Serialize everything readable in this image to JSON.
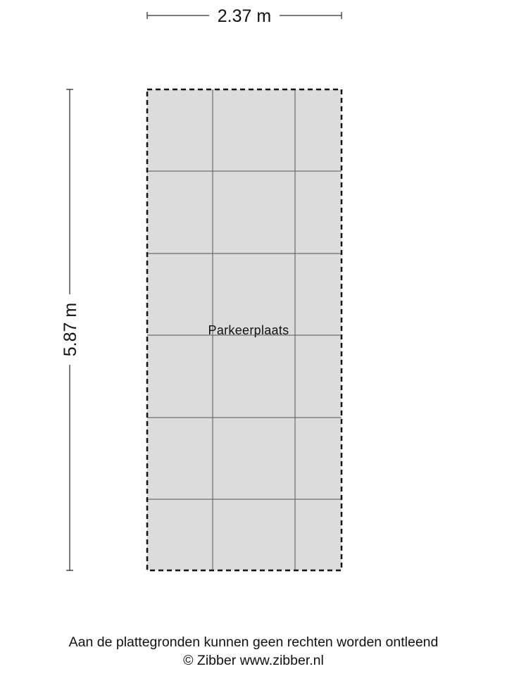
{
  "plan": {
    "width_label": "2.37 m",
    "height_label": "5.87 m",
    "room_label": "Parkeerplaats",
    "fill_color": "#dcdcdc",
    "outline": "dashed"
  },
  "footer": {
    "disclaimer": "Aan de plattegronden kunnen geen rechten worden ontleend",
    "credit": "© Zibber www.zibber.nl"
  }
}
